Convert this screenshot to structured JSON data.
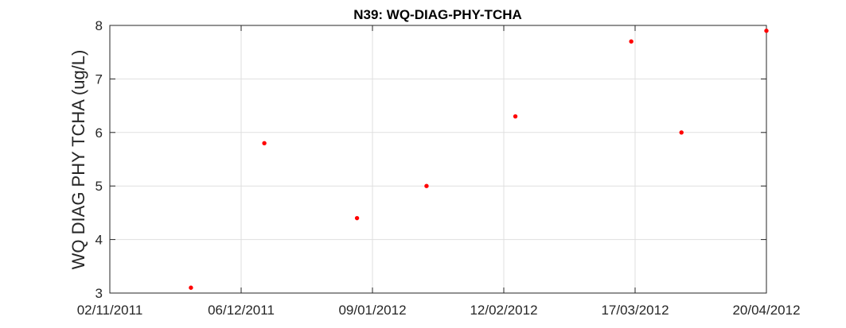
{
  "chart_data": {
    "type": "scatter",
    "title": "N39: WQ-DIAG-PHY-TCHA",
    "xlabel": "",
    "ylabel": "WQ DIAG PHY TCHA (ug/L)",
    "x_scale": "date",
    "xlim": [
      "2011-11-02",
      "2012-04-20"
    ],
    "ylim": [
      3,
      8
    ],
    "x_ticks": [
      "02/11/2011",
      "06/12/2011",
      "09/01/2012",
      "12/02/2012",
      "17/03/2012",
      "20/04/2012"
    ],
    "x_tick_dates": [
      "2011-11-02",
      "2011-12-06",
      "2012-01-09",
      "2012-02-12",
      "2012-03-17",
      "2012-04-20"
    ],
    "y_ticks": [
      3,
      4,
      5,
      6,
      7,
      8
    ],
    "grid": true,
    "marker_color": "#ff0000",
    "points": [
      {
        "x": "2011-11-23",
        "y": 3.1
      },
      {
        "x": "2011-12-12",
        "y": 5.8
      },
      {
        "x": "2012-01-05",
        "y": 4.4
      },
      {
        "x": "2012-01-23",
        "y": 5.0
      },
      {
        "x": "2012-02-15",
        "y": 6.3
      },
      {
        "x": "2012-03-16",
        "y": 7.7
      },
      {
        "x": "2012-03-29",
        "y": 6.0
      },
      {
        "x": "2012-04-20",
        "y": 7.9
      }
    ]
  }
}
